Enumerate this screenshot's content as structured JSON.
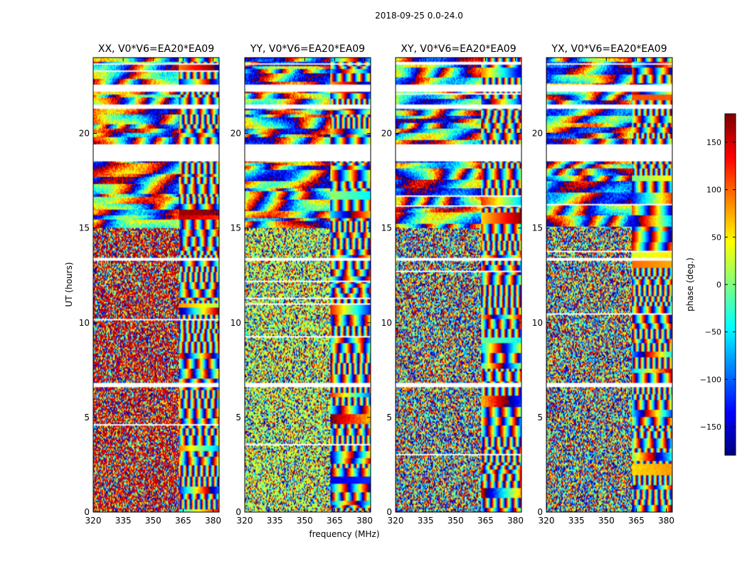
{
  "figure": {
    "suptitle": "2018-09-25 0.0-24.0",
    "xlabel": "frequency (MHz)",
    "ylabel": "UT (hours)"
  },
  "chart_data": {
    "type": "heatmap",
    "x": {
      "label": "frequency (MHz)",
      "range": [
        320,
        383
      ],
      "ticks": [
        320,
        335,
        350,
        365,
        380
      ]
    },
    "y": {
      "label": "UT (hours)",
      "range": [
        0,
        24
      ],
      "ticks": [
        0,
        5,
        10,
        15,
        20
      ]
    },
    "colorbar": {
      "label": "phase (deg.)",
      "range": [
        -180,
        180
      ],
      "ticks": [
        150,
        100,
        50,
        0,
        -50,
        -100,
        -150
      ],
      "tick_labels": [
        "150",
        "100",
        "50",
        "0",
        "−50",
        "−100",
        "−150"
      ],
      "colormap": "jet"
    },
    "panels": [
      {
        "title": "XX, V0*V6=EA20*EA09",
        "seed": 11,
        "coherent_until_mhz": 363,
        "low_phase": 150
      },
      {
        "title": "YY, V0*V6=EA20*EA09",
        "seed": 23,
        "coherent_until_mhz": 363,
        "low_phase": 20
      },
      {
        "title": "XY, V0*V6=EA20*EA09",
        "seed": 37,
        "coherent_until_mhz": 363,
        "low_phase": null
      },
      {
        "title": "YX, V0*V6=EA20*EA09",
        "seed": 51,
        "coherent_until_mhz": 363,
        "low_phase": null
      }
    ],
    "flagged_ut_ranges": [
      [
        18.5,
        19.4
      ],
      [
        6.6,
        6.8
      ],
      [
        22.2,
        22.6
      ],
      [
        13.3,
        13.45
      ],
      [
        23.6,
        23.7
      ],
      [
        21.3,
        21.5
      ]
    ]
  }
}
